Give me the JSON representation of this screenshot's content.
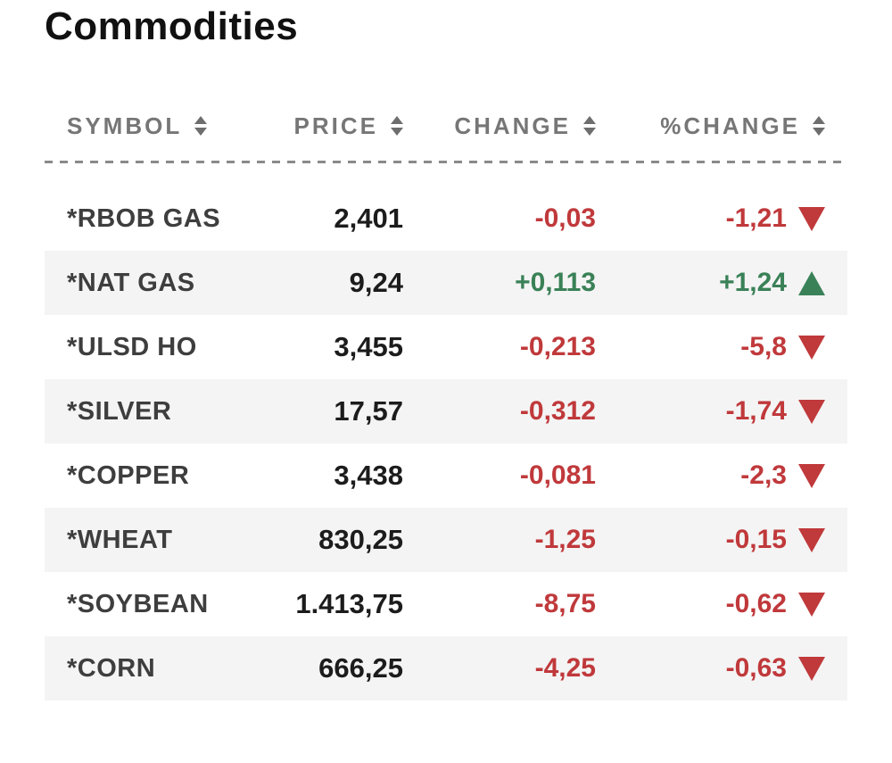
{
  "page": {
    "title": "Commodities"
  },
  "colors": {
    "positive": "#3a8157",
    "negative": "#c0393b",
    "stripe": "#f4f4f4",
    "header_text": "#767676",
    "symbol_text": "#3e3e3e",
    "price_text": "#1c1c1c",
    "title_text": "#111111",
    "rule": "#8a8a8a"
  },
  "icons": {
    "sort": "sort-arrows-icon",
    "up": "triangle-up-icon",
    "down": "triangle-down-icon"
  },
  "table": {
    "columns": [
      {
        "key": "symbol",
        "label": "SYMBOL",
        "sortable": true,
        "align": "left"
      },
      {
        "key": "price",
        "label": "PRICE",
        "sortable": true,
        "align": "right"
      },
      {
        "key": "change",
        "label": "CHANGE",
        "sortable": true,
        "align": "right"
      },
      {
        "key": "pct_change",
        "label": "%CHANGE",
        "sortable": true,
        "align": "right"
      }
    ],
    "rows": [
      {
        "symbol": "*RBOB GAS",
        "price": "2,401",
        "change": "-0,03",
        "pct_change": "-1,21",
        "direction": "down"
      },
      {
        "symbol": "*NAT GAS",
        "price": "9,24",
        "change": "+0,113",
        "pct_change": "+1,24",
        "direction": "up"
      },
      {
        "symbol": "*ULSD HO",
        "price": "3,455",
        "change": "-0,213",
        "pct_change": "-5,8",
        "direction": "down"
      },
      {
        "symbol": "*SILVER",
        "price": "17,57",
        "change": "-0,312",
        "pct_change": "-1,74",
        "direction": "down"
      },
      {
        "symbol": "*COPPER",
        "price": "3,438",
        "change": "-0,081",
        "pct_change": "-2,3",
        "direction": "down"
      },
      {
        "symbol": "*WHEAT",
        "price": "830,25",
        "change": "-1,25",
        "pct_change": "-0,15",
        "direction": "down"
      },
      {
        "symbol": "*SOYBEAN",
        "price": "1.413,75",
        "change": "-8,75",
        "pct_change": "-0,62",
        "direction": "down"
      },
      {
        "symbol": "*CORN",
        "price": "666,25",
        "change": "-4,25",
        "pct_change": "-0,63",
        "direction": "down"
      }
    ]
  }
}
